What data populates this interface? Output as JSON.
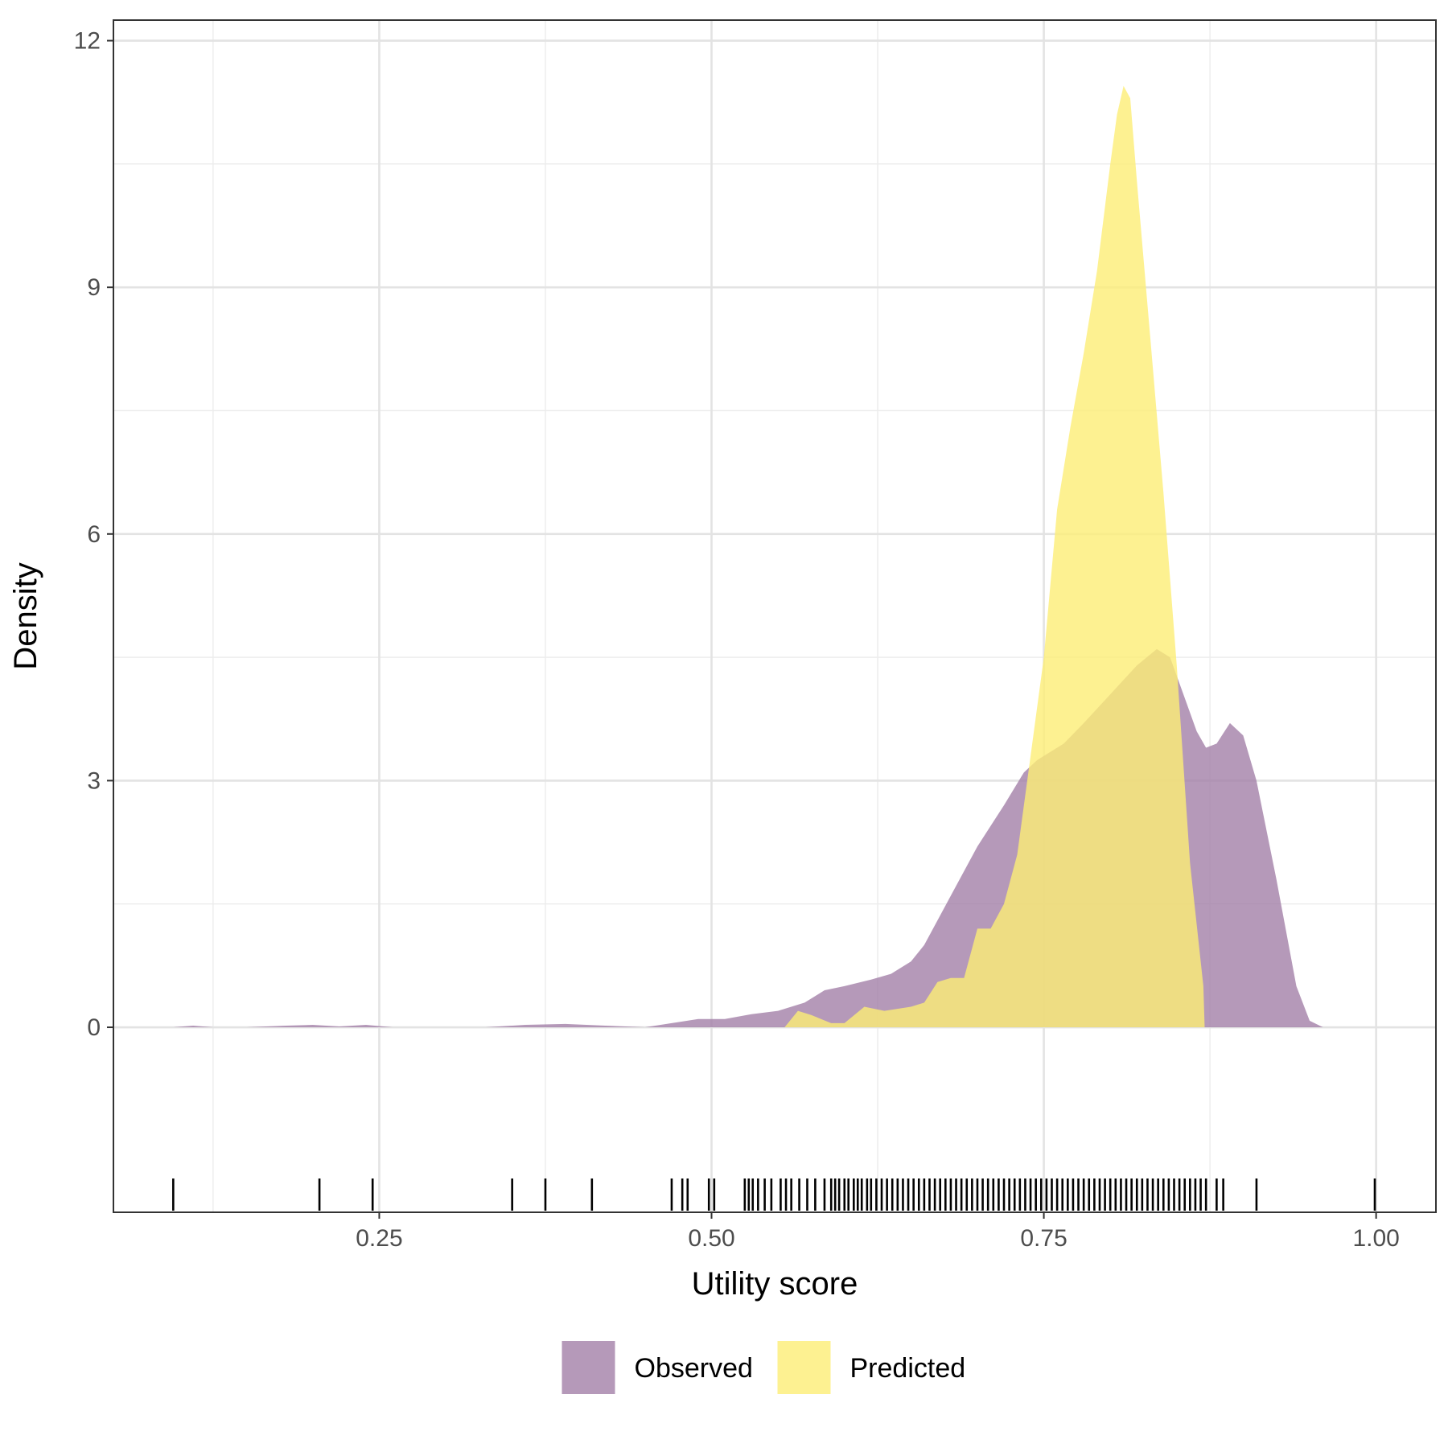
{
  "chart_data": {
    "type": "area",
    "title": "",
    "xlabel": "Utility score",
    "ylabel": "Density",
    "xlim": [
      0.05,
      1.045
    ],
    "ylim": [
      -2.25,
      12.25
    ],
    "x_ticks": [
      0.25,
      0.5,
      0.75,
      1.0
    ],
    "x_tick_labels": [
      "0.25",
      "0.50",
      "0.75",
      "1.00"
    ],
    "x_minor_ticks": [
      0.125,
      0.375,
      0.625,
      0.875
    ],
    "y_ticks": [
      0,
      3,
      6,
      9,
      12
    ],
    "y_tick_labels": [
      "0",
      "3",
      "6",
      "9",
      "12"
    ],
    "y_minor_ticks": [
      1.5,
      4.5,
      7.5,
      10.5
    ],
    "grid": true,
    "legend_position": "bottom",
    "series": [
      {
        "name": "Observed",
        "color": "#a380a8",
        "x": [
          0.095,
          0.11,
          0.125,
          0.15,
          0.18,
          0.2,
          0.22,
          0.24,
          0.26,
          0.28,
          0.3,
          0.33,
          0.36,
          0.39,
          0.42,
          0.45,
          0.47,
          0.49,
          0.51,
          0.53,
          0.55,
          0.57,
          0.585,
          0.6,
          0.62,
          0.635,
          0.65,
          0.66,
          0.68,
          0.7,
          0.72,
          0.735,
          0.745,
          0.755,
          0.765,
          0.78,
          0.8,
          0.82,
          0.835,
          0.845,
          0.855,
          0.865,
          0.872,
          0.88,
          0.89,
          0.9,
          0.91,
          0.925,
          0.94,
          0.95,
          0.96
        ],
        "y": [
          0,
          0.02,
          0,
          0,
          0.02,
          0.03,
          0.01,
          0.03,
          0,
          0,
          0,
          0,
          0.03,
          0.04,
          0.02,
          0,
          0.05,
          0.1,
          0.1,
          0.16,
          0.2,
          0.3,
          0.45,
          0.5,
          0.58,
          0.65,
          0.8,
          1.0,
          1.6,
          2.2,
          2.7,
          3.1,
          3.25,
          3.35,
          3.45,
          3.7,
          4.05,
          4.4,
          4.6,
          4.5,
          4.05,
          3.6,
          3.4,
          3.45,
          3.7,
          3.55,
          3.0,
          1.8,
          0.5,
          0.08,
          0
        ]
      },
      {
        "name": "Predicted",
        "color": "#fdee75",
        "x": [
          0.555,
          0.565,
          0.575,
          0.59,
          0.6,
          0.615,
          0.63,
          0.65,
          0.66,
          0.67,
          0.68,
          0.69,
          0.7,
          0.71,
          0.72,
          0.73,
          0.74,
          0.75,
          0.76,
          0.77,
          0.78,
          0.79,
          0.8,
          0.805,
          0.81,
          0.815,
          0.82,
          0.83,
          0.84,
          0.85,
          0.86,
          0.87,
          0.871
        ],
        "y": [
          0,
          0.2,
          0.15,
          0.05,
          0.05,
          0.25,
          0.2,
          0.25,
          0.3,
          0.55,
          0.6,
          0.6,
          1.2,
          1.2,
          1.5,
          2.1,
          3.3,
          4.5,
          6.3,
          7.3,
          8.2,
          9.2,
          10.5,
          11.1,
          11.45,
          11.3,
          10.3,
          8.4,
          6.5,
          4.4,
          2.0,
          0.5,
          0
        ]
      }
    ],
    "rug": {
      "color": "#000000",
      "x": [
        0.095,
        0.205,
        0.245,
        0.35,
        0.375,
        0.41,
        0.47,
        0.478,
        0.482,
        0.498,
        0.502,
        0.525,
        0.528,
        0.531,
        0.535,
        0.54,
        0.545,
        0.552,
        0.556,
        0.56,
        0.566,
        0.572,
        0.578,
        0.585,
        0.59,
        0.593,
        0.596,
        0.6,
        0.603,
        0.607,
        0.61,
        0.613,
        0.617,
        0.62,
        0.624,
        0.628,
        0.632,
        0.636,
        0.64,
        0.644,
        0.648,
        0.652,
        0.656,
        0.66,
        0.664,
        0.668,
        0.672,
        0.676,
        0.68,
        0.684,
        0.688,
        0.692,
        0.696,
        0.7,
        0.704,
        0.708,
        0.712,
        0.716,
        0.72,
        0.724,
        0.728,
        0.732,
        0.736,
        0.74,
        0.744,
        0.748,
        0.752,
        0.756,
        0.76,
        0.764,
        0.768,
        0.772,
        0.776,
        0.78,
        0.784,
        0.788,
        0.792,
        0.796,
        0.8,
        0.804,
        0.808,
        0.812,
        0.816,
        0.82,
        0.824,
        0.828,
        0.832,
        0.836,
        0.84,
        0.844,
        0.848,
        0.852,
        0.856,
        0.86,
        0.864,
        0.868,
        0.872,
        0.88,
        0.885,
        0.91,
        0.999
      ]
    }
  }
}
